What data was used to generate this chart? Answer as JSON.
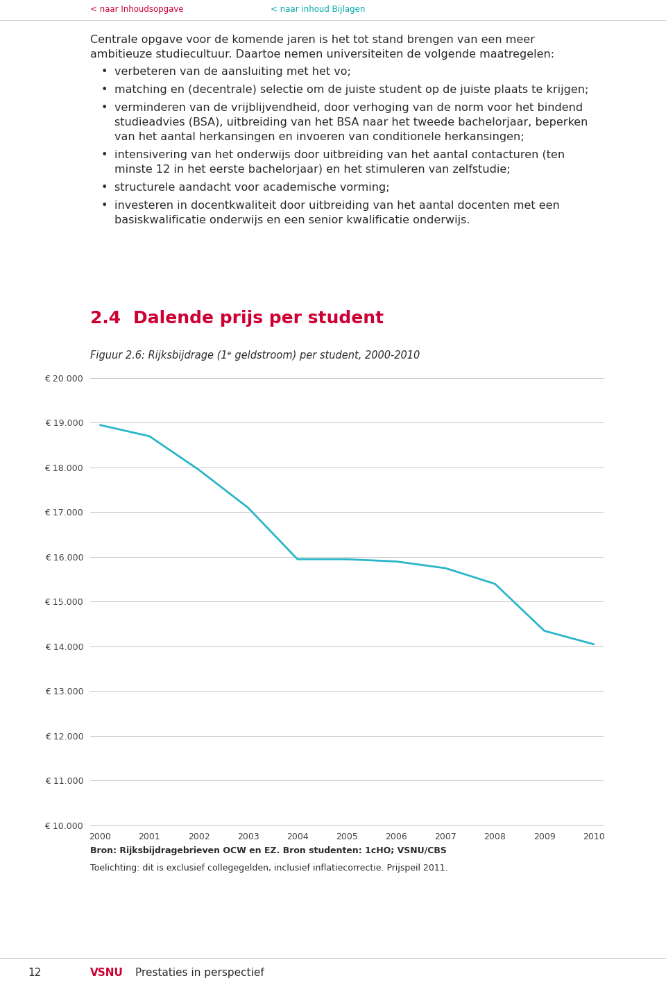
{
  "nav_links": [
    "< naar Inhoudsopgave",
    "< naar inhoud Bijlagen"
  ],
  "nav_colors": [
    "#cc0033",
    "#00aaaa"
  ],
  "section_number": "2.4",
  "section_title": "Dalende prijs per student",
  "section_color": "#cc0033",
  "figure_label": "Figuur 2.6: Rijksbijdrage (1ᵉ geldstroom) per student, 2000-2010",
  "years": [
    2000,
    2001,
    2002,
    2003,
    2004,
    2005,
    2006,
    2007,
    2008,
    2009,
    2010
  ],
  "values": [
    18950,
    18700,
    17950,
    17100,
    15950,
    15950,
    15900,
    15750,
    15400,
    14350,
    14050
  ],
  "line_color": "#2ab5c8",
  "ylim_min": 10000,
  "ylim_max": 20000,
  "yticks": [
    10000,
    11000,
    12000,
    13000,
    14000,
    15000,
    16000,
    17000,
    18000,
    19000,
    20000
  ],
  "ytick_labels": [
    "€ 10.000",
    "€ 11.000",
    "€ 12.000",
    "€ 13.000",
    "€ 14.000",
    "€ 15.000",
    "€ 16.000",
    "€ 17.000",
    "€ 18.000",
    "€ 19.000",
    "€ 20.000"
  ],
  "source_text": "Bron: Rijksbijdragebrieven OCW en EZ. Bron studenten: 1cHO; VSNU/CBS",
  "note_text": "Toelichting: dit is exclusief collegegelden, inclusief inflatiecorrectie. Prijspeil 2011.",
  "page_number": "12",
  "publisher": "VSNU",
  "publisher_color": "#cc0033",
  "publisher_subtitle": "Prestaties in perspectief",
  "intro_text": "Centrale opgave voor de komende jaren is het tot stand brengen van een meer ambitieuze studiecultuur. Daartoe nemen universiteiten de volgende maatregelen:",
  "bullet_points": [
    "verbeteren van de aansluiting met het vo;",
    "matching en (decentrale) selectie om de juiste student op de juiste plaats te krijgen;",
    "verminderen van de vrijblijvendheid, door verhoging van de norm voor het bindend studieadvies (BSA), uitbreiding van het BSA naar het tweede bachelorjaar, beperken van het aantal herkansingen en invoeren van conditionele herkansingen;",
    "intensivering van het onderwijs door uitbreiding van het aantal contacturen (ten minste 12 in het eerste bachelorjaar) en het stimuleren van zelfstudie;",
    "structurele aandacht voor academische vorming;",
    "investeren in docentkwaliteit door uitbreiding van het aantal docenten met een basiskwalificatie onderwijs en een senior kwalificatie onderwijs."
  ],
  "background_color": "#ffffff",
  "text_color": "#2b2b2b",
  "font_size_body": 11.5,
  "font_size_nav": 8.5,
  "font_size_section": 18,
  "font_size_figure": 10.5,
  "font_size_source": 9,
  "font_size_ytick": 9,
  "font_size_xtick": 9,
  "font_size_footer": 11
}
